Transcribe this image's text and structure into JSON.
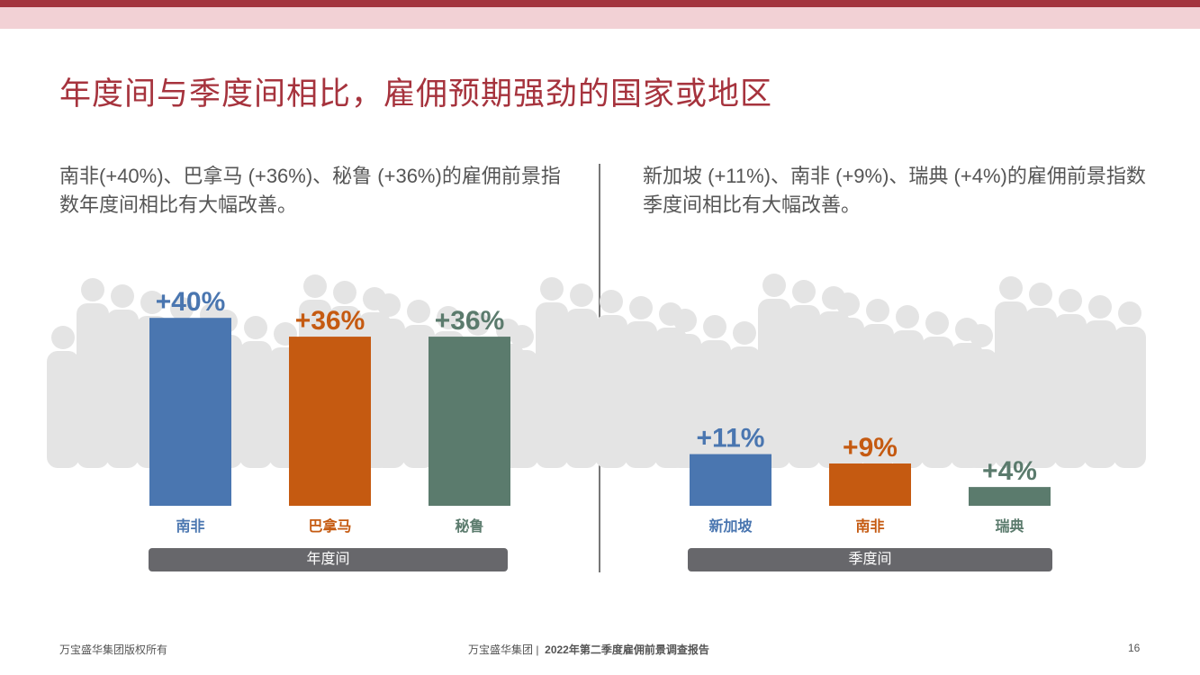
{
  "header": {
    "title": "年度间与季度间相比，雇佣预期强劲的国家或地区"
  },
  "left": {
    "description": "南非(+40%)、巴拿马 (+36%)、秘鲁 (+36%)的雇佣前景指数年度间相比有大幅改善。",
    "period_label": "年度间"
  },
  "right": {
    "description": "新加坡 (+11%)、南非 (+9%)、瑞典 (+4%)的雇佣前景指数季度间相比有大幅改善。",
    "period_label": "季度间"
  },
  "chart_data": [
    {
      "type": "bar",
      "title": "",
      "xlabel": "年度间",
      "ylabel": "",
      "categories": [
        "南非",
        "巴拿马",
        "秘鲁"
      ],
      "values": [
        40,
        36,
        36
      ],
      "data_labels": [
        "+40%",
        "+36%",
        "+36%"
      ],
      "colors": [
        "#4a76b0",
        "#c55a11",
        "#5b7b6d"
      ],
      "grid": false
    },
    {
      "type": "bar",
      "title": "",
      "xlabel": "季度间",
      "ylabel": "",
      "categories": [
        "新加坡",
        "南非",
        "瑞典"
      ],
      "values": [
        11,
        9,
        4
      ],
      "data_labels": [
        "+11%",
        "+9%",
        "+4%"
      ],
      "colors": [
        "#4a76b0",
        "#c55a11",
        "#5b7b6d"
      ],
      "grid": false
    }
  ],
  "footer": {
    "copyright": "万宝盛华集团版权所有",
    "company": "万宝盛华集团",
    "separator": "|",
    "report": "2022年第二季度雇佣前景调查报告",
    "page": "16"
  }
}
